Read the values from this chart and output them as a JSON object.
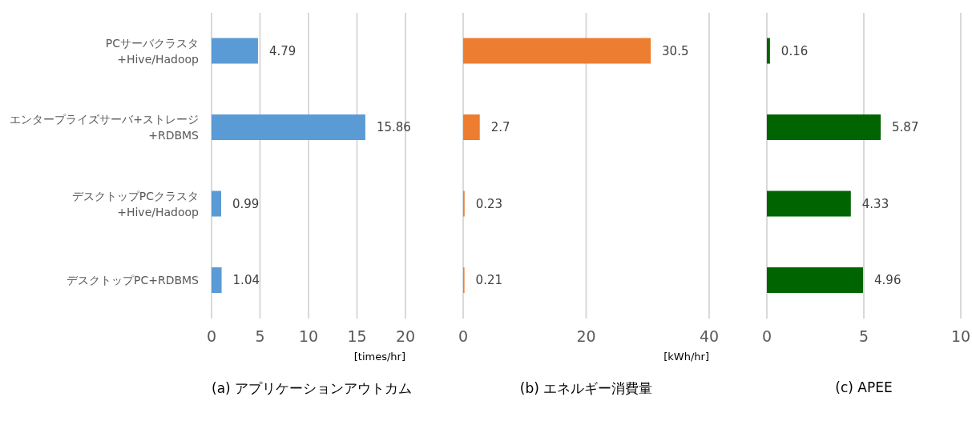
{
  "chart_data": [
    {
      "type": "bar",
      "orientation": "horizontal",
      "title": "(a) アプリケーションアウトカム",
      "xlabel": "[times/hr]",
      "categories": [
        "PCサーバクラスタ+Hive/Hadoop",
        "エンタープライズサーバ+ストレージ+RDBMS",
        "デスクトップPCクラスタ+Hive/Hadoop",
        "デスクトップPC+RDBMS"
      ],
      "values": [
        4.79,
        15.86,
        0.99,
        1.04
      ],
      "color": "#5b9bd5",
      "xlim": [
        0,
        20
      ],
      "xticks": [
        0,
        5,
        10,
        15,
        20
      ],
      "grid": "x",
      "data_labels": true
    },
    {
      "type": "bar",
      "orientation": "horizontal",
      "title": "(b) エネルギー消費量",
      "xlabel": "[kWh/hr]",
      "values": [
        30.5,
        2.7,
        0.23,
        0.21
      ],
      "color": "#ed7d31",
      "xlim": [
        0,
        40
      ],
      "xticks": [
        0,
        20,
        40
      ],
      "grid": "x",
      "data_labels": true,
      "tick_labels": "x"
    },
    {
      "type": "bar",
      "orientation": "horizontal",
      "title": "(c) APEE",
      "values": [
        0.16,
        5.87,
        4.33,
        4.96
      ],
      "color": "#006400",
      "xlim": [
        0,
        10
      ],
      "xticks": [
        0,
        5,
        10
      ],
      "grid": "x",
      "data_labels": true,
      "tick_labels": "x"
    }
  ]
}
